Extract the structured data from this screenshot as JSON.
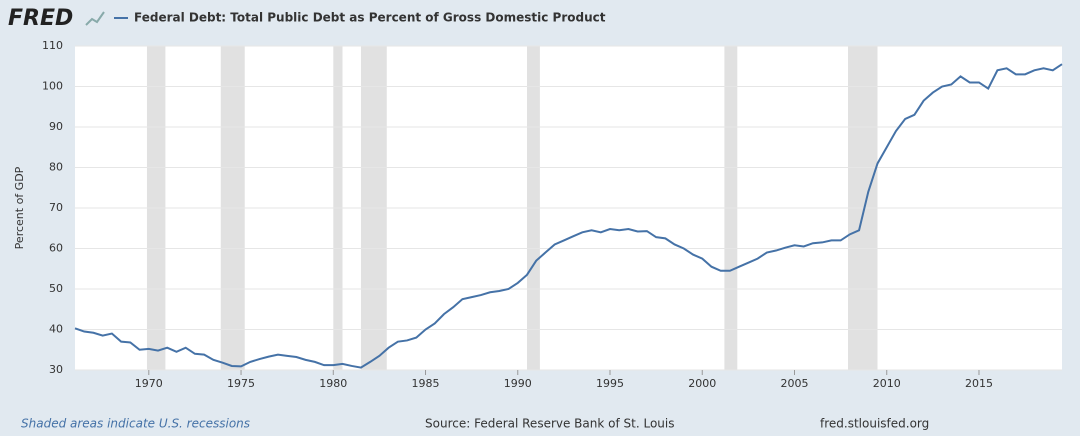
{
  "logo": "FRED",
  "chart_data": {
    "type": "line",
    "y_label": "Percent of GDP",
    "x": [
      1966,
      1966.5,
      1967,
      1967.5,
      1968,
      1968.5,
      1969,
      1969.5,
      1970,
      1970.5,
      1971,
      1971.5,
      1972,
      1972.5,
      1973,
      1973.5,
      1974,
      1974.5,
      1975,
      1975.5,
      1976,
      1976.5,
      1977,
      1977.5,
      1978,
      1978.5,
      1979,
      1979.5,
      1980,
      1980.5,
      1981,
      1981.5,
      1982,
      1982.5,
      1983,
      1983.5,
      1984,
      1984.5,
      1985,
      1985.5,
      1986,
      1986.5,
      1987,
      1987.5,
      1988,
      1988.5,
      1989,
      1989.5,
      1990,
      1990.5,
      1991,
      1991.5,
      1992,
      1992.5,
      1993,
      1993.5,
      1994,
      1994.5,
      1995,
      1995.5,
      1996,
      1996.5,
      1997,
      1997.5,
      1998,
      1998.5,
      1999,
      1999.5,
      2000,
      2000.5,
      2001,
      2001.5,
      2002,
      2002.5,
      2003,
      2003.5,
      2004,
      2004.5,
      2005,
      2005.5,
      2006,
      2006.5,
      2007,
      2007.5,
      2008,
      2008.5,
      2009,
      2009.5,
      2010,
      2010.5,
      2011,
      2011.5,
      2012,
      2012.5,
      2013,
      2013.5,
      2014,
      2014.5,
      2015,
      2015.5,
      2016,
      2016.5,
      2017,
      2017.5,
      2018,
      2018.5,
      2019,
      2019.5
    ],
    "series": [
      {
        "name": "Federal Debt: Total Public Debt as Percent of Gross Domestic Product",
        "color": "#4572a7",
        "values": [
          40.3,
          39.5,
          39.2,
          38.5,
          39.0,
          37.0,
          36.8,
          35.0,
          35.2,
          34.8,
          35.5,
          34.5,
          35.5,
          34.0,
          33.8,
          32.5,
          31.8,
          31.0,
          30.9,
          32.0,
          32.7,
          33.3,
          33.8,
          33.5,
          33.2,
          32.5,
          32.0,
          31.2,
          31.2,
          31.5,
          31.0,
          30.6,
          32.0,
          33.5,
          35.5,
          37.0,
          37.3,
          38.0,
          40.0,
          41.5,
          43.8,
          45.5,
          47.5,
          48.0,
          48.5,
          49.2,
          49.5,
          50.0,
          51.5,
          53.5,
          57.0,
          59.0,
          61.0,
          62.0,
          63.0,
          64.0,
          64.5,
          64.0,
          64.8,
          64.5,
          64.8,
          64.2,
          64.3,
          62.8,
          62.5,
          61.0,
          60.0,
          58.5,
          57.5,
          55.5,
          54.5,
          54.5,
          55.5,
          56.5,
          57.5,
          59.0,
          59.5,
          60.2,
          60.8,
          60.5,
          61.3,
          61.5,
          62.0,
          62.0,
          63.5,
          64.5,
          74.0,
          81.0,
          85.0,
          89.0,
          92.0,
          93.0,
          96.5,
          98.5,
          100.0,
          100.5,
          102.5,
          101.0,
          101.0,
          99.5,
          104.0,
          104.5,
          103.0,
          103.0,
          104.0,
          104.5,
          104.0,
          105.5
        ]
      }
    ],
    "recessions": [
      [
        1969.9,
        1970.9
      ],
      [
        1973.9,
        1975.2
      ],
      [
        1980.0,
        1980.5
      ],
      [
        1981.5,
        1982.9
      ],
      [
        1990.5,
        1991.2
      ],
      [
        2001.2,
        2001.9
      ],
      [
        2007.9,
        2009.5
      ]
    ],
    "recession_color": "#e1e1e1",
    "xlim": [
      1966,
      2019.5
    ],
    "xticks": [
      1970,
      1975,
      1980,
      1985,
      1990,
      1995,
      2000,
      2005,
      2010,
      2015
    ],
    "ylim": [
      30,
      110
    ],
    "yticks": [
      30,
      40,
      50,
      60,
      70,
      80,
      90,
      100,
      110
    ],
    "grid": true,
    "footer_left": "Shaded areas indicate U.S. recessions",
    "source": "Source: Federal Reserve Bank of St. Louis",
    "site": "fred.stlouisfed.org"
  }
}
